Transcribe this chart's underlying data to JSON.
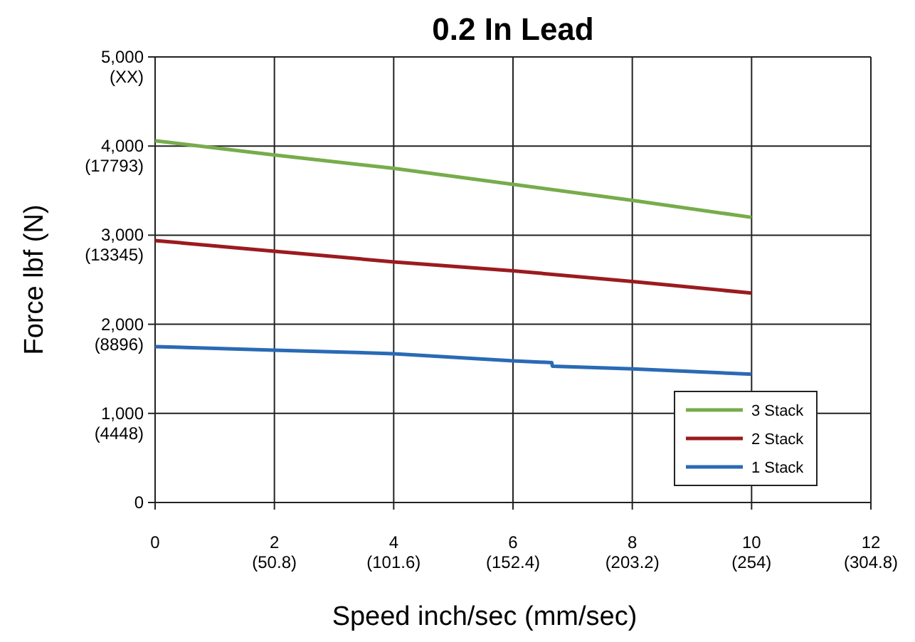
{
  "chart_data": {
    "type": "line",
    "title": "0.2 In Lead",
    "xlabel": "Speed inch/sec (mm/sec)",
    "ylabel": "Force lbf (N)",
    "xlim": [
      0,
      12
    ],
    "ylim": [
      0,
      5000
    ],
    "xticks": [
      0,
      2,
      4,
      6,
      8,
      10,
      12
    ],
    "x2lim": [
      0,
      304.8
    ],
    "x2ticks": [
      {
        "value": 50.8,
        "label": "(50.8)"
      },
      {
        "value": 101.6,
        "label": "(101.6)"
      },
      {
        "value": 152.4,
        "label": "(152.4)"
      },
      {
        "value": 203.2,
        "label": "(203.2)"
      },
      {
        "value": 254,
        "label": "(254)"
      },
      {
        "value": 304.8,
        "label": "(304.8)"
      }
    ],
    "yticks": [
      0,
      {
        "value": 1000,
        "label": "1,000\n(4448)"
      },
      {
        "value": 2000,
        "label": "2,000\n(8896)"
      },
      {
        "value": 3000,
        "label": "3,000\n(13345)"
      },
      {
        "value": 4000,
        "label": "4,000\n(17793)"
      },
      {
        "value": 5000,
        "label": "5,000\n(XX)"
      }
    ],
    "grid": true,
    "legend": "bottom right",
    "series": [
      {
        "name": "3 Stack",
        "color": "#77ac4b",
        "x": [
          0,
          2,
          4,
          6,
          8,
          10
        ],
        "values": [
          4060,
          3900,
          3750,
          3570,
          3390,
          3200
        ]
      },
      {
        "name": "2 Stack",
        "color": "#9b1b1f",
        "x": [
          0,
          2,
          4,
          6,
          8,
          10
        ],
        "values": [
          2940,
          2820,
          2700,
          2600,
          2480,
          2350
        ]
      },
      {
        "name": "1 Stack",
        "color": "#2a6ab5",
        "x": [
          0,
          2,
          4,
          6,
          6.65,
          6.66,
          8,
          10
        ],
        "values": [
          1750,
          1710,
          1670,
          1590,
          1570,
          1530,
          1500,
          1440
        ]
      }
    ]
  }
}
